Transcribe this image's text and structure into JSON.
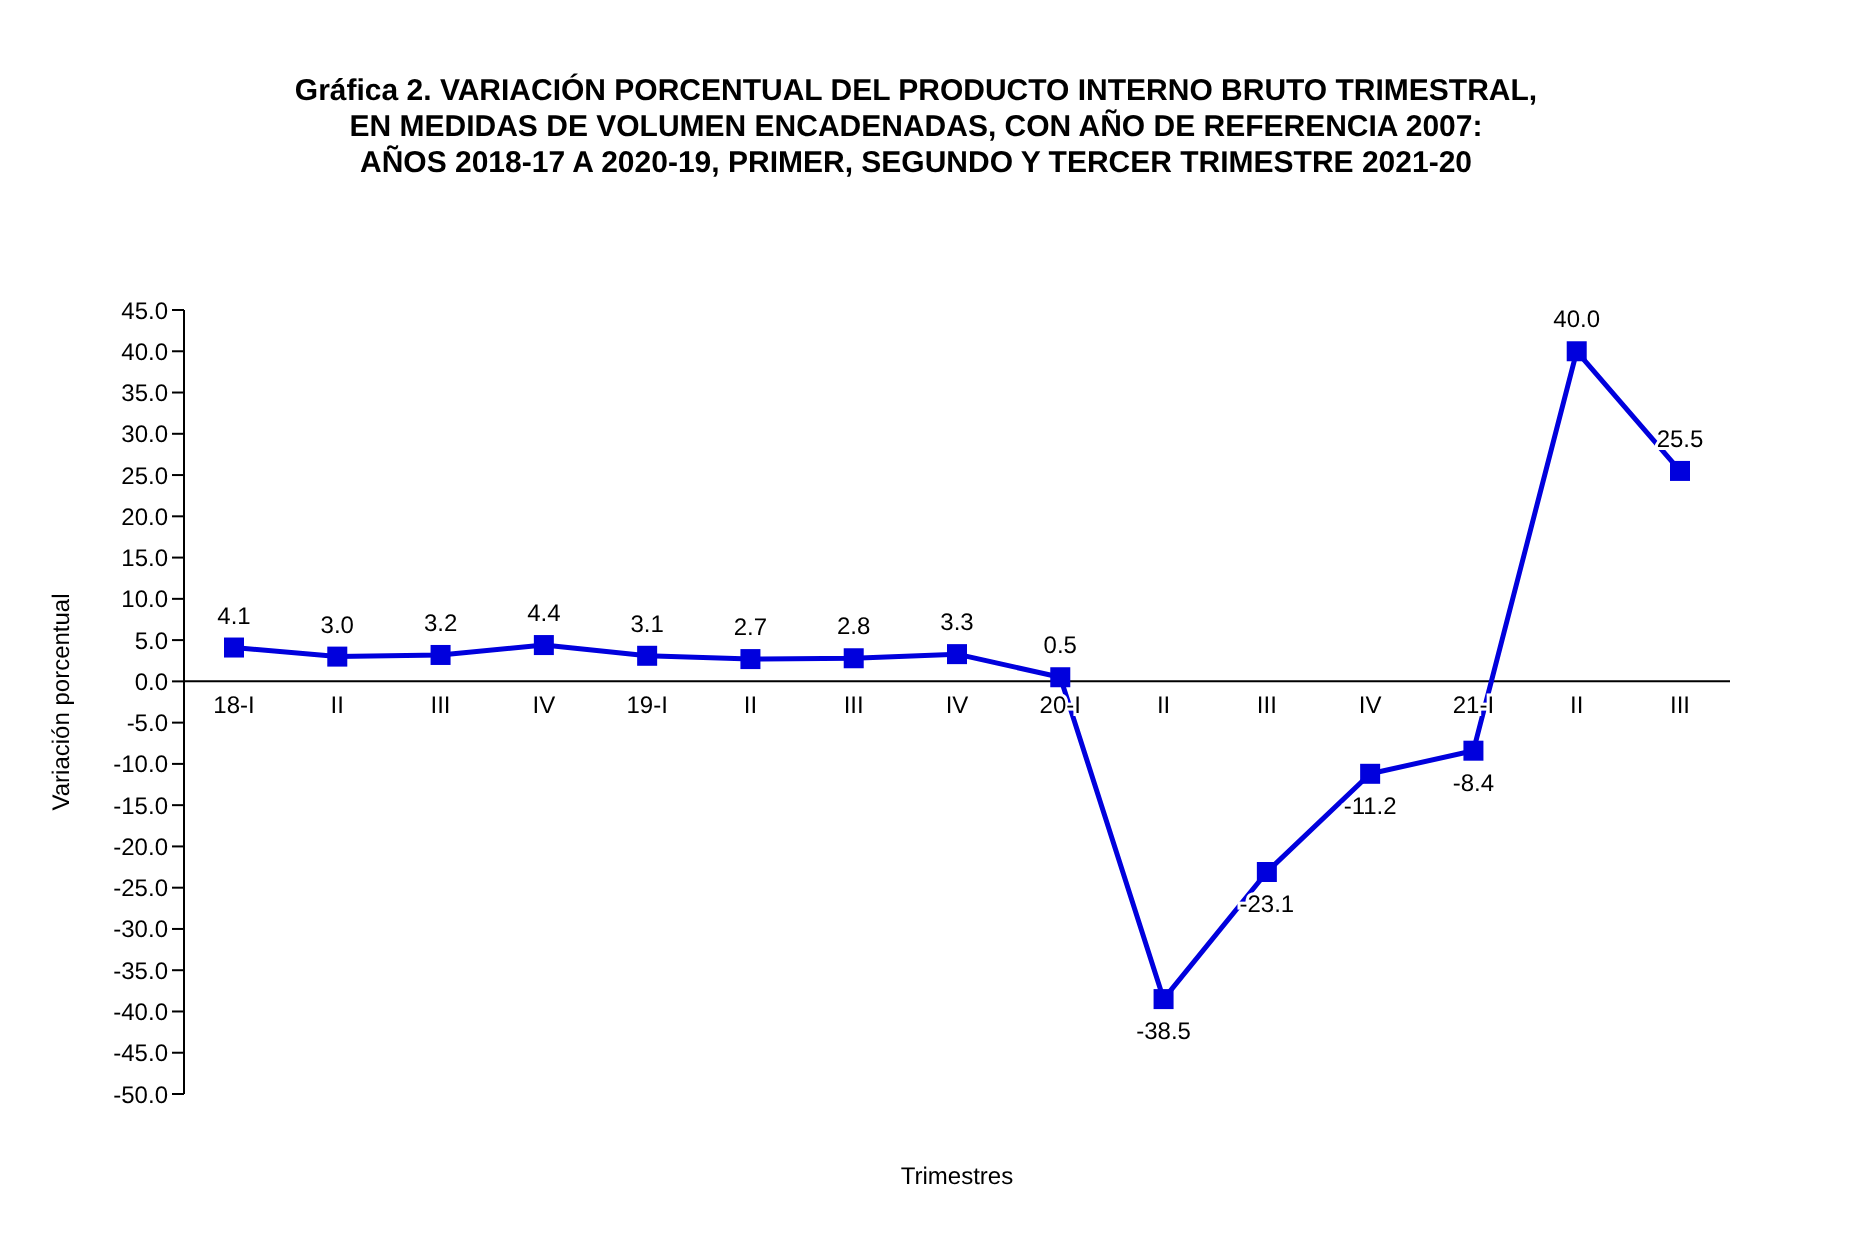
{
  "chart_data": {
    "type": "line",
    "title": "Gráfica 2. VARIACIÓN PORCENTUAL DEL PRODUCTO INTERNO BRUTO TRIMESTRAL,\nEN MEDIDAS DE VOLUMEN ENCADENADAS, CON AÑO DE REFERENCIA 2007:\nAÑOS 2018-17 A 2020-19, PRIMER, SEGUNDO Y TERCER TRIMESTRE 2021-20",
    "xlabel": "Trimestres",
    "ylabel": "Variación porcentual",
    "categories": [
      "18-I",
      "II",
      "III",
      "IV",
      "19-I",
      "II",
      "III",
      "IV",
      "20-I",
      "II",
      "III",
      "IV",
      "21-I",
      "II",
      "III"
    ],
    "series": [
      {
        "color": "#0000dd",
        "values": [
          4.1,
          3.0,
          3.2,
          4.4,
          3.1,
          2.7,
          2.8,
          3.3,
          0.5,
          -38.5,
          -23.1,
          -11.2,
          -8.4,
          40.0,
          25.5
        ],
        "value_labels": [
          "4.1",
          "3.0",
          "3.2",
          "4.4",
          "3.1",
          "2.7",
          "2.8",
          "3.3",
          "0.5",
          "-38.5",
          "-23.1",
          "-11.2",
          "-8.4",
          "40.0",
          "25.5"
        ]
      }
    ],
    "ylim": [
      -50,
      45
    ],
    "yticks": [
      {
        "value": 45,
        "label": "45.0"
      },
      {
        "value": 40,
        "label": "40.0"
      },
      {
        "value": 35,
        "label": "35.0"
      },
      {
        "value": 30,
        "label": "30.0"
      },
      {
        "value": 25,
        "label": "25.0"
      },
      {
        "value": 20,
        "label": "20.0"
      },
      {
        "value": 15,
        "label": "15.0"
      },
      {
        "value": 10,
        "label": "10.0"
      },
      {
        "value": 5,
        "label": "5.0"
      },
      {
        "value": 0,
        "label": "0.0"
      },
      {
        "value": -5,
        "label": "-5.0"
      },
      {
        "value": -10,
        "label": "-10.0"
      },
      {
        "value": -15,
        "label": "-15.0"
      },
      {
        "value": -20,
        "label": "-20.0"
      },
      {
        "value": -25,
        "label": "-25.0"
      },
      {
        "value": -30,
        "label": "-30.0"
      },
      {
        "value": -35,
        "label": "-35.0"
      },
      {
        "value": -40,
        "label": "-40.0"
      },
      {
        "value": -45,
        "label": "-45.0"
      },
      {
        "value": -50,
        "label": "-50.0"
      }
    ],
    "grid": false,
    "legend": false,
    "marker": "square",
    "line_style": "solid"
  }
}
